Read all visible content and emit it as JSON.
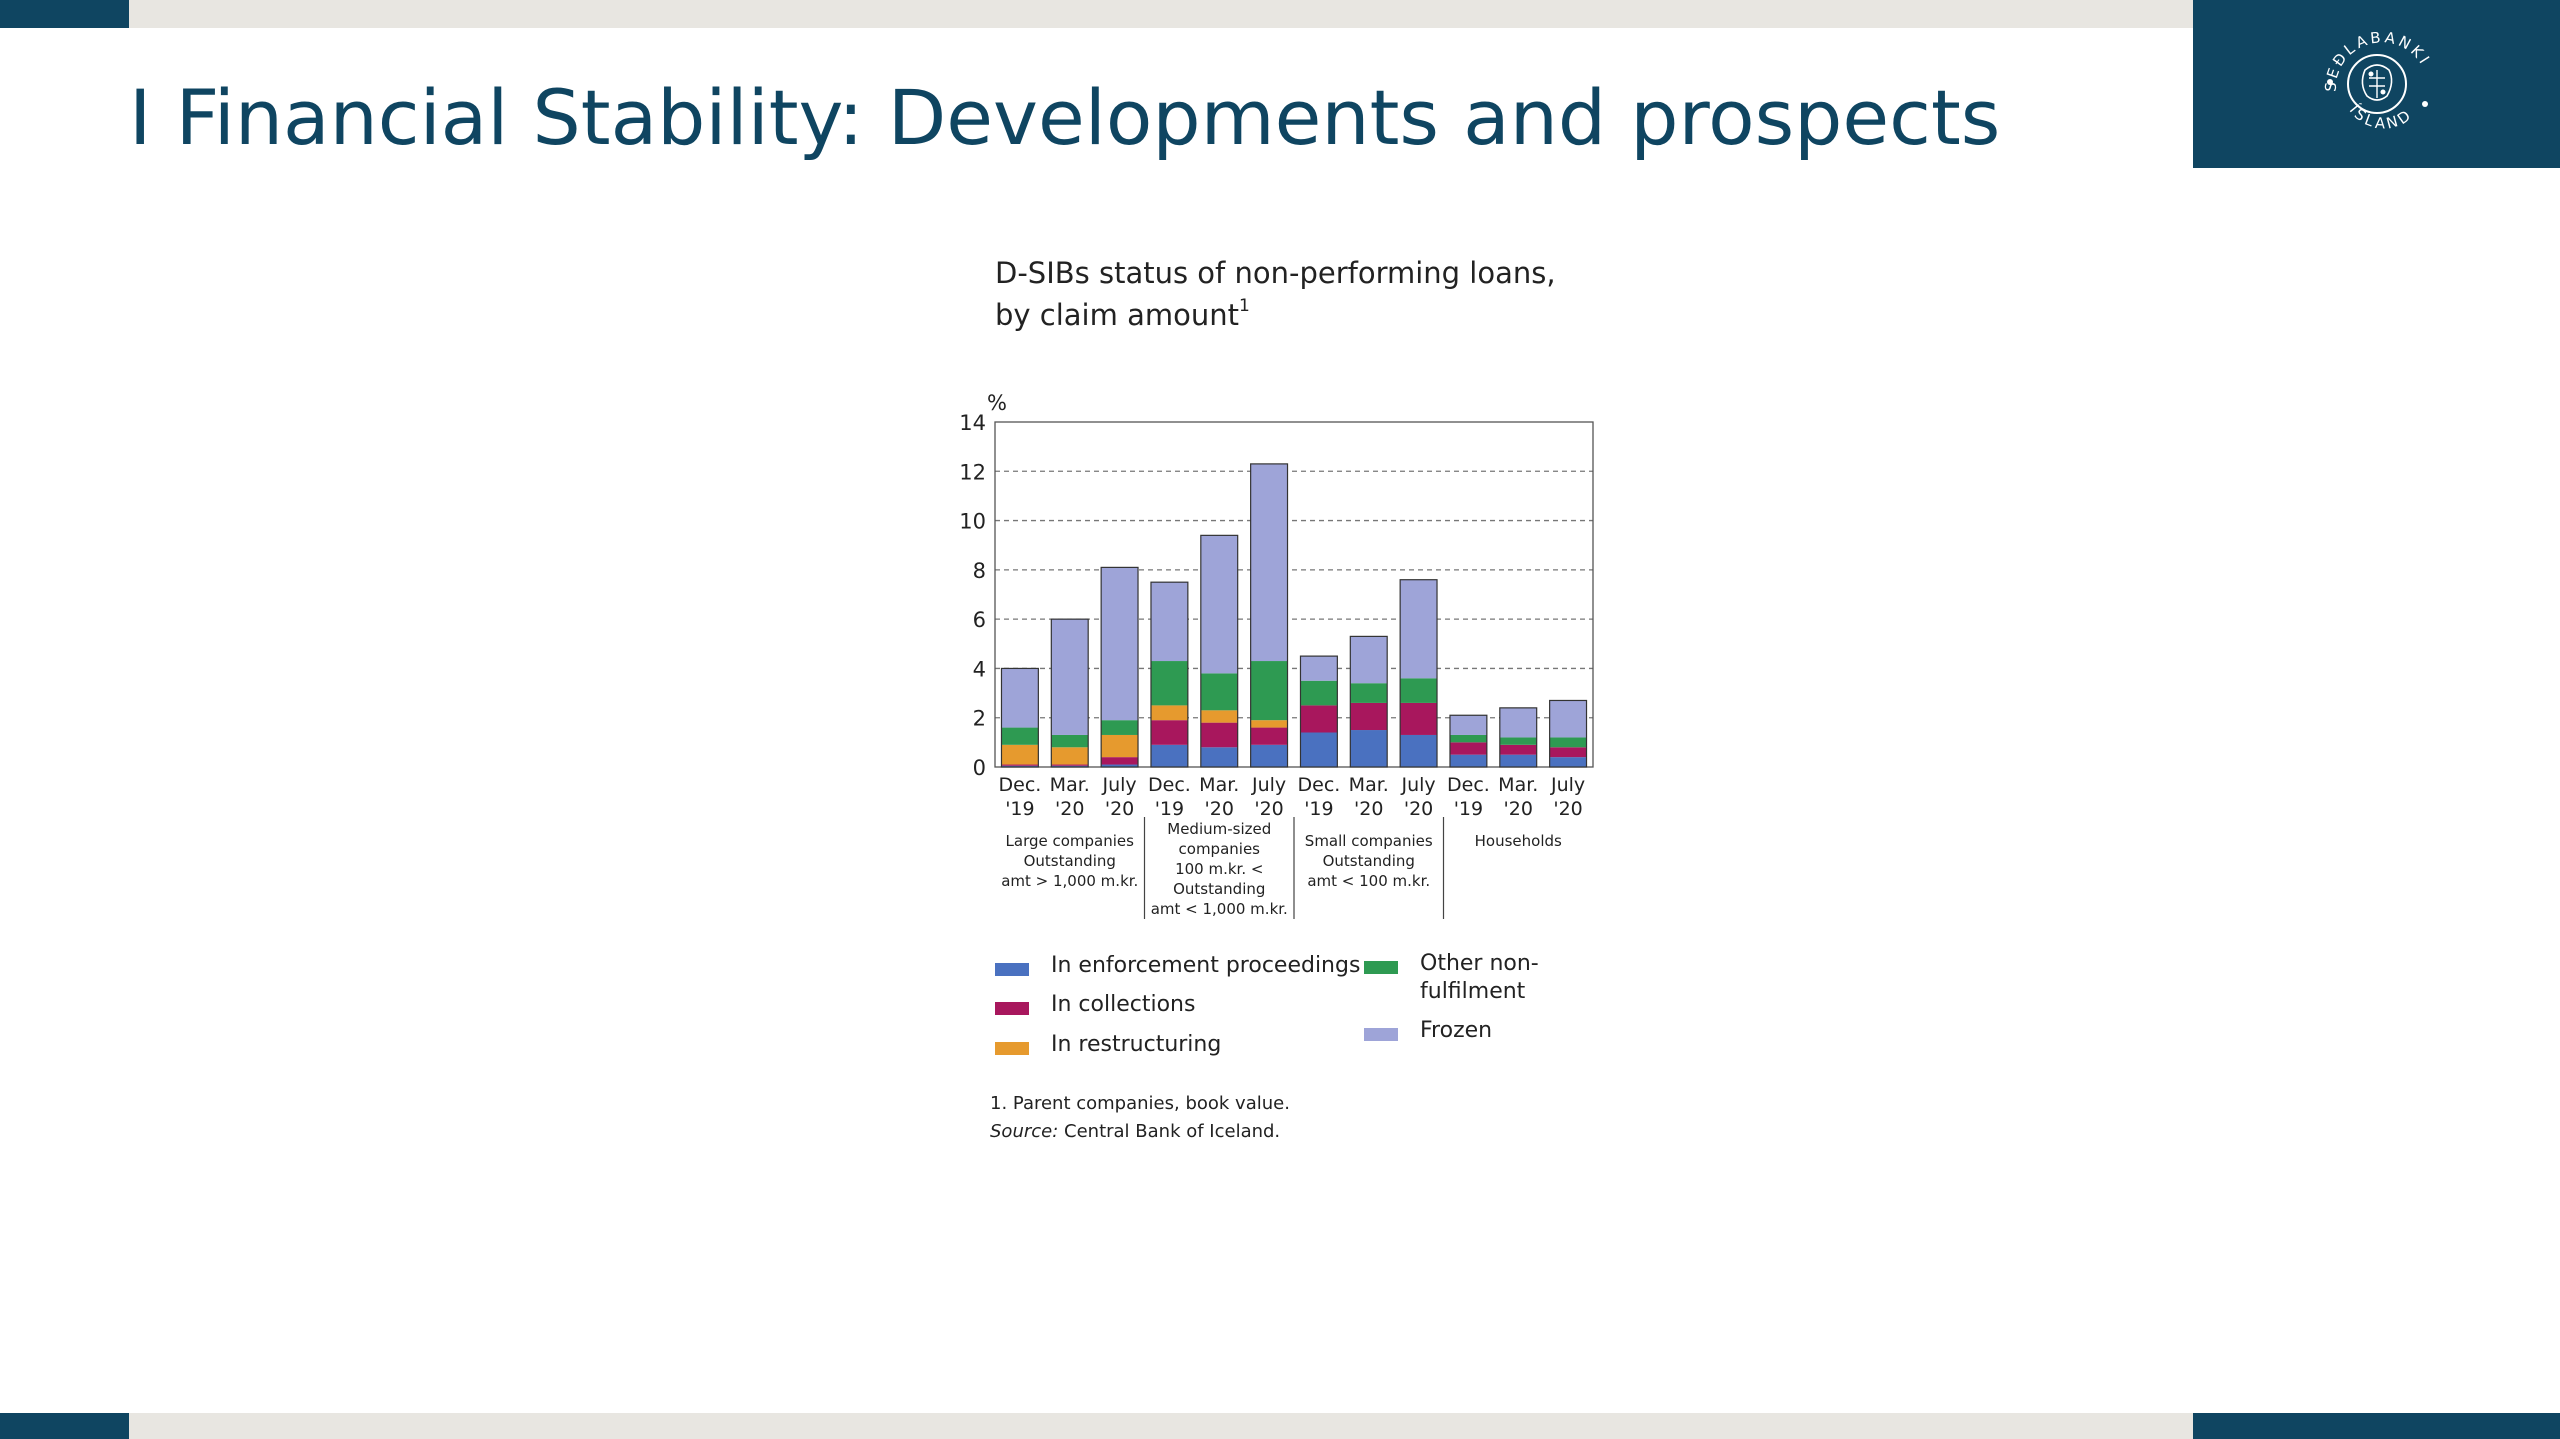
{
  "page": {
    "title": "I Financial Stability: Developments and prospects",
    "logo": {
      "icon": "sedlabanki-seal-icon",
      "text": "SEÐLABANKI ÍSLANDS"
    }
  },
  "colors": {
    "navy": "#0f4561",
    "bar_grey": "#e8e6e1"
  },
  "chart_title": {
    "line1": "D-SIBs status of non-performing loans,",
    "line2": "by claim amount",
    "superscript": "1"
  },
  "chart_data": {
    "type": "bar",
    "stacked": true,
    "ylabel": "%",
    "ylim": [
      0,
      14
    ],
    "yticks": [
      0,
      2,
      4,
      6,
      8,
      10,
      12,
      14
    ],
    "grid": "horizontal dashed",
    "categories": [
      [
        "Dec.",
        "'19"
      ],
      [
        "Mar.",
        "'20"
      ],
      [
        "July",
        "'20"
      ],
      [
        "Dec.",
        "'19"
      ],
      [
        "Mar.",
        "'20"
      ],
      [
        "July",
        "'20"
      ],
      [
        "Dec.",
        "'19"
      ],
      [
        "Mar.",
        "'20"
      ],
      [
        "July",
        "'20"
      ],
      [
        "Dec.",
        "'19"
      ],
      [
        "Mar.",
        "'20"
      ],
      [
        "July",
        "'20"
      ]
    ],
    "groups": [
      {
        "lines": [
          "Large companies",
          "Outstanding",
          "amt > 1,000 m.kr."
        ],
        "start": 0,
        "count": 3
      },
      {
        "lines": [
          "Medium-sized",
          "companies",
          "100 m.kr. <",
          "Outstanding",
          "amt < 1,000 m.kr."
        ],
        "start": 3,
        "count": 3
      },
      {
        "lines": [
          "Small companies",
          "Outstanding",
          "amt < 100 m.kr."
        ],
        "start": 6,
        "count": 3
      },
      {
        "lines": [
          "Households"
        ],
        "start": 9,
        "count": 3
      }
    ],
    "series": [
      {
        "name": "In enforcement proceedings",
        "color": "#4a71c0",
        "values": [
          0.05,
          0.05,
          0.1,
          0.9,
          0.8,
          0.9,
          1.4,
          1.5,
          1.3,
          0.5,
          0.5,
          0.4
        ]
      },
      {
        "name": "In collections",
        "color": "#a8175d",
        "values": [
          0.05,
          0.05,
          0.3,
          1.0,
          1.0,
          0.7,
          1.1,
          1.1,
          1.3,
          0.5,
          0.4,
          0.4
        ]
      },
      {
        "name": "In restructuring",
        "color": "#e69a2e",
        "values": [
          0.8,
          0.7,
          0.9,
          0.6,
          0.5,
          0.3,
          0.0,
          0.0,
          0.0,
          0.0,
          0.0,
          0.0
        ]
      },
      {
        "name": "Other non-fulfilment",
        "color": "#2e9a52",
        "values": [
          0.7,
          0.5,
          0.6,
          1.8,
          1.5,
          2.4,
          1.0,
          0.8,
          1.0,
          0.3,
          0.3,
          0.4
        ]
      },
      {
        "name": "Frozen",
        "color": "#9ea4d8",
        "values": [
          2.4,
          4.7,
          6.2,
          3.2,
          5.6,
          8.0,
          1.0,
          1.9,
          4.0,
          0.8,
          1.2,
          1.5
        ]
      }
    ]
  },
  "legend": {
    "enforcement": "In enforcement proceedings",
    "collections": "In collections",
    "restructuring": "In restructuring",
    "other_line1": "Other non-",
    "other_line2": "fulfilment",
    "frozen": "Frozen"
  },
  "footnote": {
    "note": "1. Parent companies, book value.",
    "source_label": "Source:",
    "source_text": " Central Bank of Iceland."
  }
}
